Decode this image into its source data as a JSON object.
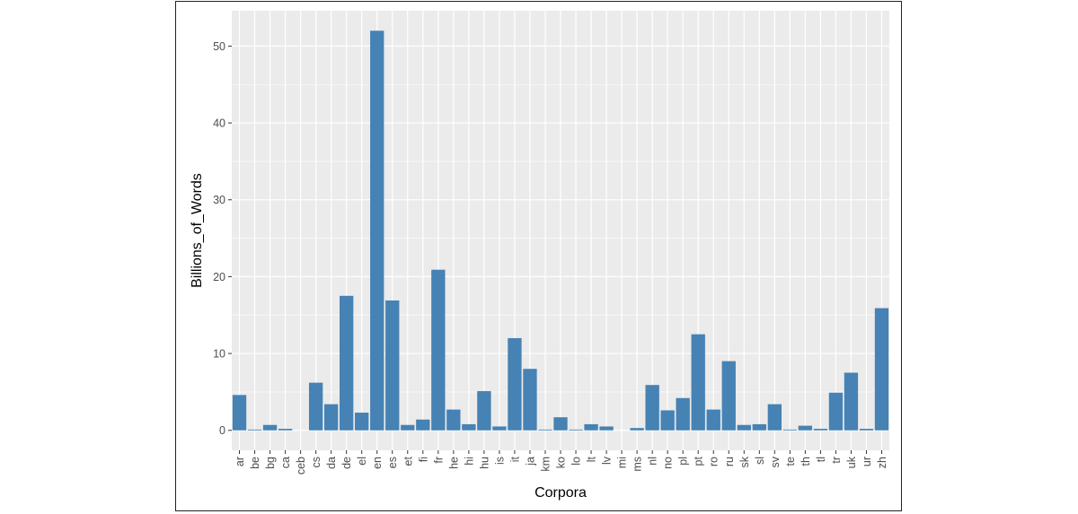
{
  "chart_data": {
    "type": "bar",
    "title": "",
    "xlabel": "Corpora",
    "ylabel": "Billions_of_Words",
    "ylim": [
      -2.6,
      54.6
    ],
    "yticks": [
      0,
      10,
      20,
      30,
      40,
      50
    ],
    "grid": true,
    "legend": "none",
    "bar_color": "#4682b4",
    "panel_color": "#ebebeb",
    "categories": [
      "ar",
      "be",
      "bg",
      "ca",
      "ceb",
      "cs",
      "da",
      "de",
      "el",
      "en",
      "es",
      "et",
      "fi",
      "fr",
      "he",
      "hi",
      "hu",
      "is",
      "it",
      "ja",
      "km",
      "ko",
      "lo",
      "lt",
      "lv",
      "mi",
      "ms",
      "nl",
      "no",
      "pl",
      "pt",
      "ro",
      "ru",
      "sk",
      "sl",
      "sv",
      "te",
      "th",
      "tl",
      "tr",
      "uk",
      "ur",
      "zh"
    ],
    "values": [
      4.6,
      0.1,
      0.7,
      0.2,
      0.0,
      6.2,
      3.4,
      17.5,
      2.3,
      52.0,
      16.9,
      0.7,
      1.4,
      20.9,
      2.7,
      0.8,
      5.1,
      0.5,
      12.0,
      8.0,
      0.1,
      1.7,
      0.1,
      0.8,
      0.5,
      0.0,
      0.3,
      5.9,
      2.6,
      4.2,
      12.5,
      2.7,
      9.0,
      0.7,
      0.8,
      3.4,
      0.1,
      0.6,
      0.2,
      4.9,
      7.5,
      0.2,
      15.9
    ]
  }
}
